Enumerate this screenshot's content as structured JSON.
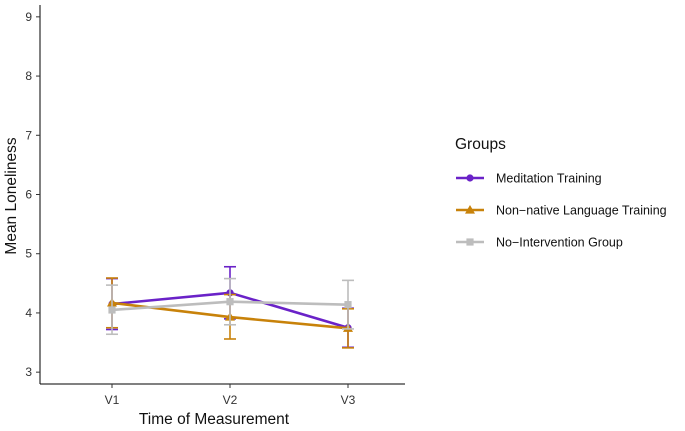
{
  "chart_data": {
    "type": "line",
    "title": "",
    "xlabel": "Time of Measurement",
    "ylabel": "Mean Loneliness",
    "categories": [
      "V1",
      "V2",
      "V3"
    ],
    "ylim": [
      2.8,
      9.2
    ],
    "yticks": [
      3,
      4,
      5,
      6,
      7,
      8,
      9
    ],
    "grid": false,
    "legend": {
      "title": "Groups",
      "placement": "right"
    },
    "series": [
      {
        "name": "Meditation Training",
        "marker": "circle",
        "color": "#6a22c8",
        "values": [
          4.15,
          4.34,
          3.75
        ],
        "error_low": [
          3.72,
          3.9,
          3.42
        ],
        "error_high": [
          4.58,
          4.78,
          4.08
        ]
      },
      {
        "name": "Non−native Language Training",
        "marker": "triangle",
        "color": "#c8820a",
        "values": [
          4.17,
          3.93,
          3.74
        ],
        "error_low": [
          3.75,
          3.56,
          3.41
        ],
        "error_high": [
          4.59,
          4.31,
          4.07
        ]
      },
      {
        "name": "No−Intervention Group",
        "marker": "square",
        "color": "#bdbdbd",
        "values": [
          4.05,
          4.19,
          4.14
        ],
        "error_low": [
          3.64,
          3.8,
          3.73
        ],
        "error_high": [
          4.47,
          4.58,
          4.55
        ]
      }
    ]
  }
}
